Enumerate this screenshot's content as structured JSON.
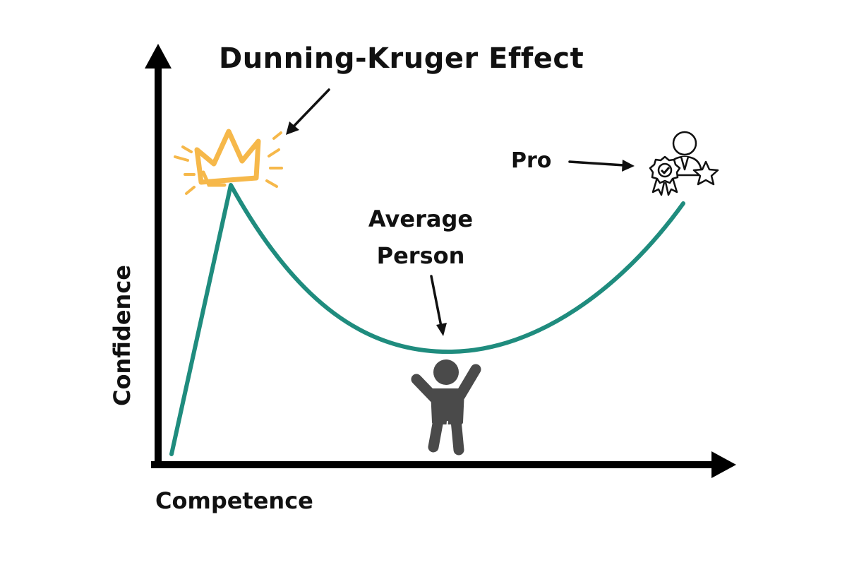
{
  "title": "Dunning-Kruger Effect",
  "axes": {
    "x_label": "Competence",
    "y_label": "Confidence"
  },
  "annotations": {
    "peak_icon": "crown-icon",
    "valley_label_line1": "Average",
    "valley_label_line2": "Person",
    "valley_icon": "cheering-person-icon",
    "end_label": "Pro",
    "end_icon": "expert-award-icon"
  },
  "colors": {
    "curve": "#1f8c7e",
    "crown": "#f6b84a",
    "axis": "#000000",
    "person": "#4a4a4a",
    "text": "#111111"
  }
}
